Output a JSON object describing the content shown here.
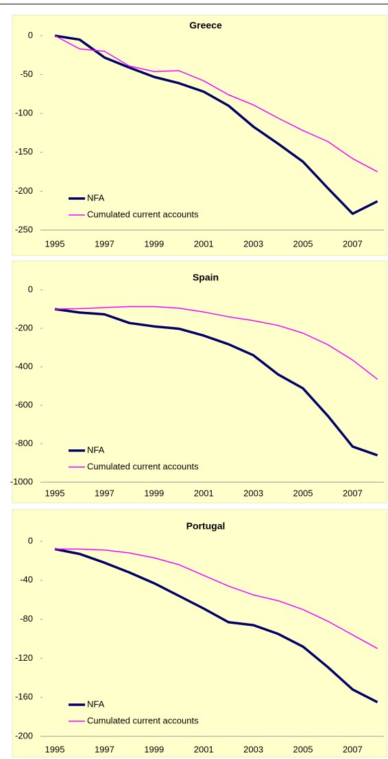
{
  "chart_data": [
    {
      "type": "line",
      "title": "Greece",
      "categories": [
        "1995",
        null,
        "1997",
        null,
        "1999",
        null,
        "2001",
        null,
        "2003",
        null,
        "2005",
        null,
        "2007",
        null
      ],
      "series": [
        {
          "name": "NFA",
          "color": "#000066",
          "values": [
            0,
            -5,
            -28,
            -41,
            -53,
            -61,
            -72,
            -90,
            -117,
            -139,
            -162,
            -196,
            -229,
            -213
          ]
        },
        {
          "name": "Cumulated current accounts",
          "color": "#ff00ff",
          "values": [
            0,
            -17,
            -20,
            -39,
            -46,
            -45,
            -58,
            -76,
            -89,
            -106,
            -122,
            -136,
            -158,
            -175
          ]
        }
      ],
      "ylim": [
        -250,
        0
      ],
      "yticks": [
        0,
        -50,
        -100,
        -150,
        -200,
        -250
      ],
      "legend": "lower left"
    },
    {
      "type": "line",
      "title": "Spain",
      "categories": [
        "1995",
        null,
        "1997",
        null,
        "1999",
        null,
        "2001",
        null,
        "2003",
        null,
        "2005",
        null,
        "2007",
        null
      ],
      "series": [
        {
          "name": "NFA",
          "color": "#000066",
          "values": [
            -100,
            -118,
            -127,
            -172,
            -190,
            -202,
            -238,
            -283,
            -340,
            -440,
            -512,
            -655,
            -815,
            -860
          ]
        },
        {
          "name": "Cumulated current accounts",
          "color": "#ff00ff",
          "values": [
            -100,
            -98,
            -92,
            -87,
            -87,
            -95,
            -115,
            -140,
            -160,
            -185,
            -225,
            -285,
            -365,
            -465
          ]
        }
      ],
      "ylim": [
        -1000,
        0
      ],
      "yticks": [
        0,
        -200,
        -400,
        -600,
        -800,
        -1000
      ],
      "legend": "lower left"
    },
    {
      "type": "line",
      "title": "Portugal",
      "categories": [
        "1995",
        null,
        "1997",
        null,
        "1999",
        null,
        "2001",
        null,
        "2003",
        null,
        "2005",
        null,
        "2007",
        null
      ],
      "series": [
        {
          "name": "NFA",
          "color": "#000066",
          "values": [
            -8,
            -13,
            -22,
            -32,
            -43,
            -56,
            -69,
            -83,
            -86,
            -95,
            -108,
            -129,
            -152,
            -165
          ]
        },
        {
          "name": "Cumulated current accounts",
          "color": "#ff00ff",
          "values": [
            -8,
            -8,
            -9,
            -12,
            -17,
            -24,
            -35,
            -46,
            -55,
            -61,
            -70,
            -82,
            -96,
            -110
          ]
        }
      ],
      "ylim": [
        -200,
        0
      ],
      "yticks": [
        0,
        -40,
        -80,
        -120,
        -160,
        -200
      ],
      "legend": "lower left"
    }
  ]
}
